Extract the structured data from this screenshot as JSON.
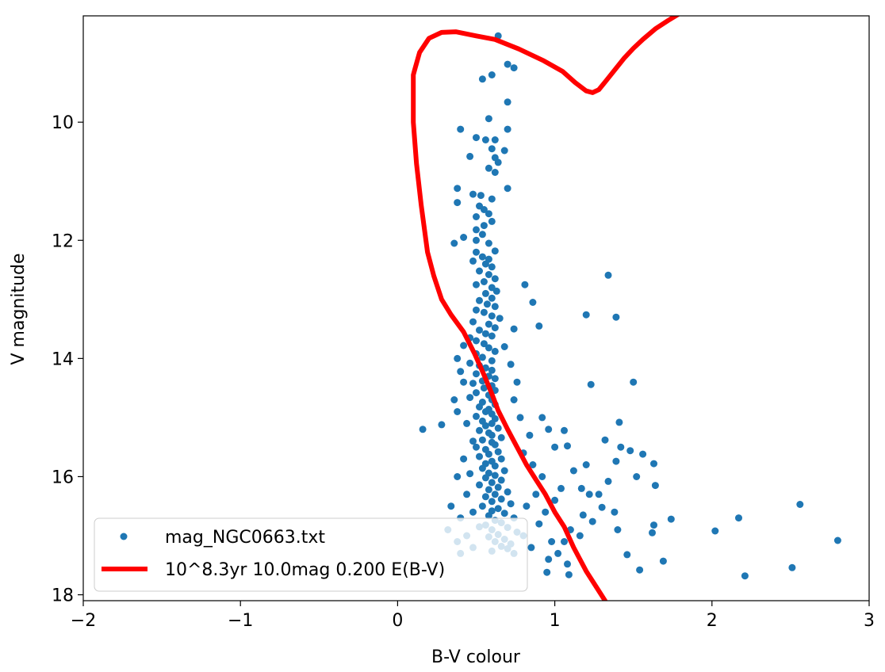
{
  "chart_data": {
    "type": "scatter",
    "xlabel": "B-V colour",
    "ylabel": "V magnitude",
    "xlim": [
      -2,
      3
    ],
    "ylim": [
      18.1,
      8.2
    ],
    "y_inverted": true,
    "x_ticks": [
      -2,
      -1,
      0,
      1,
      2,
      3
    ],
    "x_tick_labels": [
      "−2",
      "−1",
      "0",
      "1",
      "2",
      "3"
    ],
    "y_ticks": [
      10,
      12,
      14,
      16,
      18
    ],
    "y_tick_labels": [
      "10",
      "12",
      "14",
      "16",
      "18"
    ],
    "grid": false,
    "legend_position": "lower-left",
    "legend": {
      "scatter_label": "mag_NGC0663.txt",
      "line_label": "10^8.3yr 10.0mag 0.200 E(B-V)"
    },
    "colors": {
      "scatter": "#1f77b4",
      "isochrone": "#ff0000"
    },
    "series": [
      {
        "name": "mag_NGC0663.txt",
        "kind": "scatter",
        "points": [
          [
            0.64,
            8.54
          ],
          [
            0.7,
            9.02
          ],
          [
            0.74,
            9.08
          ],
          [
            0.6,
            9.2
          ],
          [
            0.54,
            9.27
          ],
          [
            0.7,
            9.66
          ],
          [
            0.58,
            9.94
          ],
          [
            0.4,
            10.12
          ],
          [
            0.7,
            10.12
          ],
          [
            0.5,
            10.26
          ],
          [
            0.56,
            10.3
          ],
          [
            0.62,
            10.3
          ],
          [
            0.6,
            10.45
          ],
          [
            0.68,
            10.48
          ],
          [
            0.46,
            10.58
          ],
          [
            0.62,
            10.6
          ],
          [
            0.64,
            10.68
          ],
          [
            0.58,
            10.78
          ],
          [
            0.62,
            10.85
          ],
          [
            0.7,
            11.12
          ],
          [
            0.38,
            11.12
          ],
          [
            0.48,
            11.22
          ],
          [
            0.53,
            11.24
          ],
          [
            0.6,
            11.3
          ],
          [
            0.38,
            11.36
          ],
          [
            0.52,
            11.42
          ],
          [
            0.55,
            11.48
          ],
          [
            0.58,
            11.55
          ],
          [
            0.5,
            11.6
          ],
          [
            0.6,
            11.68
          ],
          [
            0.55,
            11.75
          ],
          [
            0.5,
            11.82
          ],
          [
            0.54,
            11.9
          ],
          [
            0.42,
            11.95
          ],
          [
            0.36,
            12.05
          ],
          [
            0.5,
            12.0
          ],
          [
            0.58,
            12.05
          ],
          [
            0.62,
            12.18
          ],
          [
            0.5,
            12.2
          ],
          [
            0.54,
            12.28
          ],
          [
            0.58,
            12.32
          ],
          [
            0.48,
            12.35
          ],
          [
            0.56,
            12.4
          ],
          [
            0.6,
            12.45
          ],
          [
            0.52,
            12.52
          ],
          [
            0.58,
            12.58
          ],
          [
            0.62,
            12.65
          ],
          [
            0.55,
            12.7
          ],
          [
            0.5,
            12.75
          ],
          [
            0.6,
            12.8
          ],
          [
            0.63,
            12.86
          ],
          [
            0.56,
            12.9
          ],
          [
            0.6,
            12.98
          ],
          [
            0.52,
            13.02
          ],
          [
            0.57,
            13.08
          ],
          [
            0.62,
            13.12
          ],
          [
            0.5,
            13.18
          ],
          [
            0.55,
            13.22
          ],
          [
            0.6,
            13.28
          ],
          [
            0.65,
            13.32
          ],
          [
            0.48,
            13.38
          ],
          [
            0.58,
            13.42
          ],
          [
            0.62,
            13.48
          ],
          [
            0.52,
            13.52
          ],
          [
            0.56,
            13.58
          ],
          [
            0.6,
            13.62
          ],
          [
            0.46,
            13.65
          ],
          [
            0.5,
            13.7
          ],
          [
            0.55,
            13.75
          ],
          [
            0.42,
            13.78
          ],
          [
            0.58,
            13.82
          ],
          [
            0.62,
            13.88
          ],
          [
            0.5,
            13.92
          ],
          [
            0.54,
            13.98
          ],
          [
            0.38,
            14.0
          ],
          [
            0.6,
            14.04
          ],
          [
            0.46,
            14.08
          ],
          [
            0.52,
            14.12
          ],
          [
            0.56,
            14.16
          ],
          [
            0.6,
            14.2
          ],
          [
            0.4,
            14.22
          ],
          [
            0.5,
            14.26
          ],
          [
            0.58,
            14.3
          ],
          [
            0.62,
            14.34
          ],
          [
            0.54,
            14.38
          ],
          [
            0.48,
            14.42
          ],
          [
            0.6,
            14.46
          ],
          [
            0.55,
            14.5
          ],
          [
            0.62,
            14.54
          ],
          [
            0.5,
            14.58
          ],
          [
            0.58,
            14.62
          ],
          [
            0.46,
            14.66
          ],
          [
            0.6,
            14.7
          ],
          [
            0.54,
            14.74
          ],
          [
            0.62,
            14.78
          ],
          [
            0.52,
            14.82
          ],
          [
            0.58,
            14.86
          ],
          [
            0.56,
            14.9
          ],
          [
            0.6,
            14.94
          ],
          [
            0.5,
            14.98
          ],
          [
            0.62,
            15.02
          ],
          [
            0.54,
            15.06
          ],
          [
            0.6,
            15.1
          ],
          [
            0.56,
            15.14
          ],
          [
            0.64,
            15.18
          ],
          [
            0.52,
            15.22
          ],
          [
            0.58,
            15.26
          ],
          [
            0.6,
            15.3
          ],
          [
            0.66,
            15.34
          ],
          [
            0.54,
            15.38
          ],
          [
            0.6,
            15.42
          ],
          [
            0.62,
            15.46
          ],
          [
            0.5,
            15.5
          ],
          [
            0.56,
            15.54
          ],
          [
            0.64,
            15.58
          ],
          [
            0.58,
            15.62
          ],
          [
            0.52,
            15.66
          ],
          [
            0.66,
            15.7
          ],
          [
            0.6,
            15.74
          ],
          [
            0.56,
            15.78
          ],
          [
            0.62,
            15.82
          ],
          [
            0.54,
            15.86
          ],
          [
            0.68,
            15.9
          ],
          [
            0.58,
            15.94
          ],
          [
            0.62,
            15.98
          ],
          [
            0.56,
            16.02
          ],
          [
            0.66,
            16.06
          ],
          [
            0.6,
            16.1
          ],
          [
            0.52,
            16.14
          ],
          [
            0.64,
            16.18
          ],
          [
            0.58,
            16.22
          ],
          [
            0.7,
            16.26
          ],
          [
            0.62,
            16.3
          ],
          [
            0.56,
            16.34
          ],
          [
            0.66,
            16.38
          ],
          [
            0.6,
            16.42
          ],
          [
            0.72,
            16.46
          ],
          [
            0.54,
            16.5
          ],
          [
            0.64,
            16.54
          ],
          [
            0.6,
            16.58
          ],
          [
            0.68,
            16.62
          ],
          [
            0.58,
            16.66
          ],
          [
            0.74,
            16.7
          ],
          [
            0.62,
            16.74
          ],
          [
            0.66,
            16.78
          ],
          [
            0.56,
            16.82
          ],
          [
            0.7,
            16.86
          ],
          [
            0.6,
            16.9
          ],
          [
            0.76,
            16.94
          ],
          [
            0.64,
            16.98
          ],
          [
            0.58,
            17.02
          ],
          [
            0.68,
            17.06
          ],
          [
            0.62,
            17.1
          ],
          [
            0.72,
            17.14
          ],
          [
            0.66,
            17.18
          ],
          [
            0.7,
            17.22
          ],
          [
            0.6,
            17.26
          ],
          [
            0.74,
            17.3
          ],
          [
            0.8,
            17.0
          ],
          [
            0.85,
            17.2
          ],
          [
            0.9,
            16.8
          ],
          [
            0.82,
            16.5
          ],
          [
            0.88,
            16.3
          ],
          [
            0.94,
            16.6
          ],
          [
            0.98,
            17.1
          ],
          [
            1.02,
            17.3
          ],
          [
            0.96,
            17.4
          ],
          [
            1.06,
            17.1
          ],
          [
            1.1,
            16.9
          ],
          [
            1.0,
            16.4
          ],
          [
            1.04,
            16.2
          ],
          [
            0.92,
            16.0
          ],
          [
            0.86,
            15.8
          ],
          [
            0.8,
            15.6
          ],
          [
            0.84,
            15.3
          ],
          [
            0.78,
            15.0
          ],
          [
            0.74,
            14.7
          ],
          [
            0.76,
            14.4
          ],
          [
            0.72,
            14.1
          ],
          [
            0.68,
            13.8
          ],
          [
            0.74,
            13.5
          ],
          [
            0.9,
            13.45
          ],
          [
            0.86,
            13.05
          ],
          [
            0.81,
            12.75
          ],
          [
            0.16,
            15.2
          ],
          [
            0.28,
            15.12
          ],
          [
            0.36,
            14.7
          ],
          [
            0.42,
            14.4
          ],
          [
            0.38,
            14.9
          ],
          [
            0.44,
            15.1
          ],
          [
            0.48,
            15.4
          ],
          [
            0.42,
            15.7
          ],
          [
            0.46,
            15.95
          ],
          [
            0.38,
            16.0
          ],
          [
            0.44,
            16.3
          ],
          [
            0.34,
            16.5
          ],
          [
            0.4,
            16.7
          ],
          [
            0.32,
            16.9
          ],
          [
            0.44,
            17.0
          ],
          [
            0.38,
            17.1
          ],
          [
            0.48,
            17.2
          ],
          [
            0.4,
            17.3
          ],
          [
            0.52,
            16.85
          ],
          [
            0.48,
            16.6
          ],
          [
            1.34,
            12.59
          ],
          [
            1.2,
            13.26
          ],
          [
            1.39,
            13.3
          ],
          [
            1.5,
            14.4
          ],
          [
            1.23,
            14.44
          ],
          [
            1.41,
            15.08
          ],
          [
            1.32,
            15.38
          ],
          [
            1.42,
            15.5
          ],
          [
            1.48,
            15.56
          ],
          [
            1.56,
            15.62
          ],
          [
            1.63,
            15.78
          ],
          [
            1.39,
            15.74
          ],
          [
            1.2,
            15.8
          ],
          [
            1.12,
            15.9
          ],
          [
            1.17,
            16.2
          ],
          [
            1.22,
            16.3
          ],
          [
            1.34,
            16.08
          ],
          [
            1.52,
            16.0
          ],
          [
            1.64,
            16.15
          ],
          [
            1.74,
            16.72
          ],
          [
            1.63,
            16.82
          ],
          [
            1.38,
            16.6
          ],
          [
            1.3,
            16.52
          ],
          [
            1.28,
            16.3
          ],
          [
            1.24,
            16.76
          ],
          [
            1.4,
            16.9
          ],
          [
            1.46,
            17.32
          ],
          [
            1.54,
            17.58
          ],
          [
            1.69,
            17.43
          ],
          [
            1.62,
            16.95
          ],
          [
            2.02,
            16.92
          ],
          [
            2.17,
            16.7
          ],
          [
            2.21,
            17.68
          ],
          [
            2.51,
            17.54
          ],
          [
            2.56,
            16.47
          ],
          [
            2.8,
            17.08
          ],
          [
            1.09,
            17.66
          ],
          [
            0.95,
            17.62
          ],
          [
            1.08,
            17.48
          ],
          [
            1.16,
            17.0
          ],
          [
            1.18,
            16.65
          ],
          [
            1.08,
            15.48
          ],
          [
            1.06,
            15.22
          ],
          [
            0.92,
            15.0
          ],
          [
            0.96,
            15.2
          ],
          [
            1.0,
            15.5
          ]
        ]
      },
      {
        "name": "10^8.3yr 10.0mag 0.200 E(B-V)",
        "kind": "line",
        "points": [
          [
            1.32,
            18.1
          ],
          [
            1.2,
            17.6
          ],
          [
            1.12,
            17.2
          ],
          [
            1.06,
            16.85
          ],
          [
            1.0,
            16.6
          ],
          [
            0.94,
            16.3
          ],
          [
            0.88,
            16.05
          ],
          [
            0.82,
            15.8
          ],
          [
            0.76,
            15.5
          ],
          [
            0.7,
            15.2
          ],
          [
            0.64,
            14.88
          ],
          [
            0.6,
            14.6
          ],
          [
            0.55,
            14.28
          ],
          [
            0.49,
            13.92
          ],
          [
            0.42,
            13.55
          ],
          [
            0.34,
            13.26
          ],
          [
            0.28,
            13.0
          ],
          [
            0.23,
            12.6
          ],
          [
            0.19,
            12.2
          ],
          [
            0.15,
            11.4
          ],
          [
            0.12,
            10.7
          ],
          [
            0.1,
            10.0
          ],
          [
            0.1,
            9.5
          ],
          [
            0.1,
            9.2
          ],
          [
            0.11,
            9.1
          ],
          [
            0.14,
            8.82
          ],
          [
            0.2,
            8.58
          ],
          [
            0.28,
            8.48
          ],
          [
            0.37,
            8.47
          ],
          [
            0.5,
            8.54
          ],
          [
            0.62,
            8.6
          ],
          [
            0.77,
            8.76
          ],
          [
            0.93,
            8.96
          ],
          [
            1.05,
            9.14
          ],
          [
            1.13,
            9.33
          ],
          [
            1.2,
            9.47
          ],
          [
            1.24,
            9.5
          ],
          [
            1.28,
            9.45
          ],
          [
            1.32,
            9.32
          ],
          [
            1.38,
            9.12
          ],
          [
            1.44,
            8.92
          ],
          [
            1.5,
            8.75
          ],
          [
            1.56,
            8.6
          ],
          [
            1.64,
            8.42
          ],
          [
            1.72,
            8.28
          ],
          [
            1.8,
            8.15
          ]
        ]
      }
    ]
  }
}
